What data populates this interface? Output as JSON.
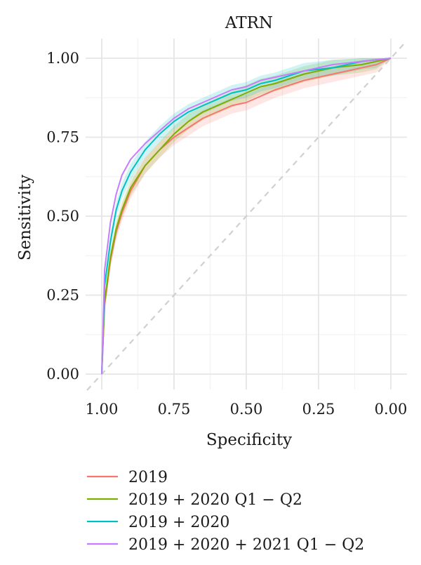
{
  "chart_data": {
    "type": "line",
    "title": "ATRN",
    "xlabel": "Specificity",
    "ylabel": "Sensitivity",
    "x_reversed": true,
    "xlim": [
      1.0,
      0.0
    ],
    "ylim": [
      0.0,
      1.0
    ],
    "xticks": [
      "1.00",
      "0.75",
      "0.50",
      "0.25",
      "0.00"
    ],
    "yticks": [
      "0.00",
      "0.25",
      "0.50",
      "0.75",
      "1.00"
    ],
    "grid": true,
    "legend_position": "bottom",
    "reference_line": "diagonal-dashed",
    "series": [
      {
        "name": "2019",
        "color": "#f8766d",
        "confidence_band": true,
        "points": [
          [
            1.0,
            0.0
          ],
          [
            0.99,
            0.22
          ],
          [
            0.97,
            0.36
          ],
          [
            0.95,
            0.45
          ],
          [
            0.93,
            0.51
          ],
          [
            0.9,
            0.58
          ],
          [
            0.85,
            0.66
          ],
          [
            0.8,
            0.71
          ],
          [
            0.75,
            0.75
          ],
          [
            0.7,
            0.78
          ],
          [
            0.65,
            0.81
          ],
          [
            0.6,
            0.83
          ],
          [
            0.55,
            0.85
          ],
          [
            0.5,
            0.86
          ],
          [
            0.45,
            0.88
          ],
          [
            0.4,
            0.9
          ],
          [
            0.3,
            0.93
          ],
          [
            0.2,
            0.95
          ],
          [
            0.1,
            0.97
          ],
          [
            0.05,
            0.98
          ],
          [
            0.0,
            1.0
          ]
        ]
      },
      {
        "name": "2019 + 2020 Q1 − Q2",
        "color": "#7cae00",
        "confidence_band": true,
        "points": [
          [
            1.0,
            0.0
          ],
          [
            0.99,
            0.23
          ],
          [
            0.97,
            0.37
          ],
          [
            0.95,
            0.46
          ],
          [
            0.93,
            0.52
          ],
          [
            0.9,
            0.59
          ],
          [
            0.85,
            0.66
          ],
          [
            0.8,
            0.71
          ],
          [
            0.75,
            0.76
          ],
          [
            0.7,
            0.8
          ],
          [
            0.65,
            0.83
          ],
          [
            0.6,
            0.85
          ],
          [
            0.55,
            0.87
          ],
          [
            0.5,
            0.89
          ],
          [
            0.45,
            0.91
          ],
          [
            0.4,
            0.92
          ],
          [
            0.3,
            0.95
          ],
          [
            0.2,
            0.97
          ],
          [
            0.1,
            0.98
          ],
          [
            0.05,
            0.99
          ],
          [
            0.0,
            1.0
          ]
        ]
      },
      {
        "name": "2019 + 2020",
        "color": "#00bfc4",
        "confidence_band": true,
        "points": [
          [
            1.0,
            0.0
          ],
          [
            0.99,
            0.28
          ],
          [
            0.97,
            0.42
          ],
          [
            0.95,
            0.52
          ],
          [
            0.93,
            0.58
          ],
          [
            0.9,
            0.64
          ],
          [
            0.85,
            0.71
          ],
          [
            0.8,
            0.76
          ],
          [
            0.75,
            0.8
          ],
          [
            0.7,
            0.83
          ],
          [
            0.65,
            0.85
          ],
          [
            0.6,
            0.87
          ],
          [
            0.55,
            0.89
          ],
          [
            0.5,
            0.9
          ],
          [
            0.45,
            0.92
          ],
          [
            0.4,
            0.93
          ],
          [
            0.3,
            0.96
          ],
          [
            0.2,
            0.97
          ],
          [
            0.1,
            0.99
          ],
          [
            0.05,
            0.995
          ],
          [
            0.0,
            1.0
          ]
        ]
      },
      {
        "name": "2019 + 2020 + 2021 Q1 − Q2",
        "color": "#c77cff",
        "confidence_band": false,
        "points": [
          [
            1.0,
            0.0
          ],
          [
            0.99,
            0.33
          ],
          [
            0.97,
            0.48
          ],
          [
            0.95,
            0.57
          ],
          [
            0.93,
            0.63
          ],
          [
            0.9,
            0.68
          ],
          [
            0.85,
            0.73
          ],
          [
            0.8,
            0.77
          ],
          [
            0.75,
            0.81
          ],
          [
            0.7,
            0.84
          ],
          [
            0.65,
            0.86
          ],
          [
            0.6,
            0.88
          ],
          [
            0.55,
            0.9
          ],
          [
            0.5,
            0.91
          ],
          [
            0.45,
            0.93
          ],
          [
            0.4,
            0.94
          ],
          [
            0.3,
            0.96
          ],
          [
            0.2,
            0.98
          ],
          [
            0.1,
            0.99
          ],
          [
            0.05,
            0.995
          ],
          [
            0.0,
            1.0
          ]
        ]
      }
    ]
  }
}
